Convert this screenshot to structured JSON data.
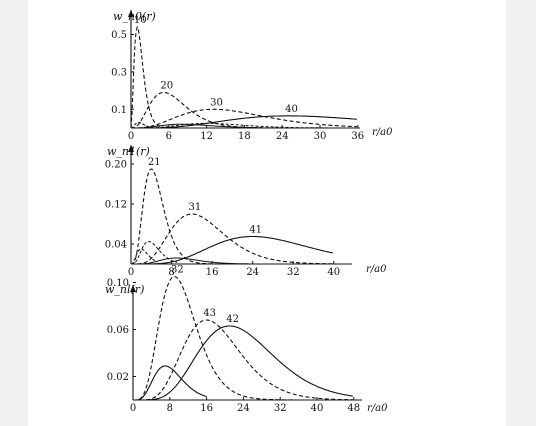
{
  "chart_data": [
    {
      "type": "line",
      "ylabel": "w_n0(r)",
      "xlabel": "r/a0",
      "xticks": [
        "0",
        "6",
        "12",
        "18",
        "24",
        "30",
        "36"
      ],
      "yticks": [
        "0.1",
        "0.3",
        "0.5"
      ],
      "xlim": [
        0,
        36
      ],
      "ylim": [
        0,
        0.56
      ],
      "series": [
        {
          "name": "10",
          "style": "dashed",
          "peak_x": 1.0,
          "peak_y": 0.54
        },
        {
          "name": "20",
          "style": "dashed",
          "peak_x": 5.2,
          "peak_y": 0.19
        },
        {
          "name": "30",
          "style": "dashed",
          "peak_x": 13.1,
          "peak_y": 0.1
        },
        {
          "name": "40",
          "style": "solid",
          "peak_x": 25.0,
          "peak_y": 0.065
        }
      ]
    },
    {
      "type": "line",
      "ylabel": "w_n1(r)",
      "xlabel": "r/a0",
      "xticks": [
        "0",
        "8",
        "16",
        "24",
        "32",
        "40"
      ],
      "yticks": [
        "0.04",
        "0.12",
        "0.20"
      ],
      "xlim": [
        0,
        40
      ],
      "ylim": [
        0,
        0.22
      ],
      "series": [
        {
          "name": "21",
          "style": "dashed",
          "peak_x": 4.0,
          "peak_y": 0.19
        },
        {
          "name": "31",
          "style": "dashed",
          "peak_x": 12.0,
          "peak_y": 0.1
        },
        {
          "name": "41",
          "style": "solid",
          "peak_x": 24.0,
          "peak_y": 0.055
        }
      ]
    },
    {
      "type": "line",
      "ylabel": "w_nl(r)",
      "xlabel": "r/a0",
      "xticks": [
        "0",
        "8",
        "16",
        "24",
        "32",
        "40",
        "48"
      ],
      "yticks": [
        "0.02",
        "0.06",
        "0.10"
      ],
      "xlim": [
        0,
        48
      ],
      "ylim": [
        0,
        0.12
      ],
      "series": [
        {
          "name": "32",
          "style": "dashed",
          "peak_x": 9.0,
          "peak_y": 0.105
        },
        {
          "name": "43",
          "style": "dashed",
          "peak_x": 16.0,
          "peak_y": 0.068
        },
        {
          "name": "42",
          "style": "solid",
          "peak_x": 21.0,
          "peak_y": 0.063
        }
      ]
    }
  ]
}
